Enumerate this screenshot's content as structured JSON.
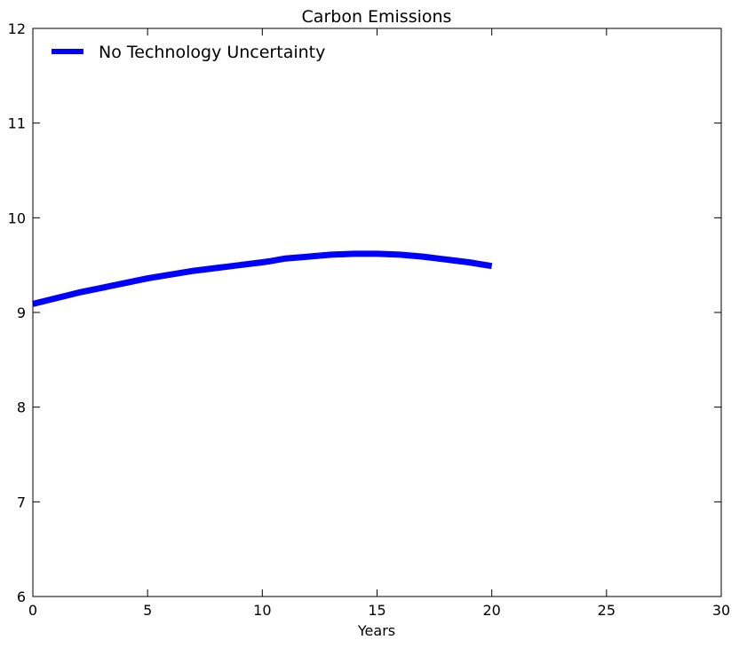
{
  "chart_data": {
    "type": "line",
    "title": "Carbon Emissions",
    "xlabel": "Years",
    "ylabel": "",
    "xlim": [
      0,
      30
    ],
    "ylim": [
      6,
      12
    ],
    "xticks": [
      0,
      5,
      10,
      15,
      20,
      25,
      30
    ],
    "yticks": [
      6,
      7,
      8,
      9,
      10,
      11,
      12
    ],
    "grid": false,
    "legend_position": "top-left",
    "series": [
      {
        "name": "No Technology Uncertainty",
        "color": "#0000ff",
        "x": [
          0,
          1,
          2,
          3,
          4,
          5,
          6,
          7,
          8,
          9,
          10,
          10.3,
          11,
          12,
          13,
          14,
          15,
          16,
          17,
          18,
          19,
          20
        ],
        "y": [
          9.09,
          9.15,
          9.21,
          9.26,
          9.31,
          9.36,
          9.4,
          9.44,
          9.47,
          9.5,
          9.53,
          9.54,
          9.57,
          9.59,
          9.61,
          9.62,
          9.62,
          9.61,
          9.59,
          9.56,
          9.53,
          9.49
        ]
      }
    ]
  }
}
